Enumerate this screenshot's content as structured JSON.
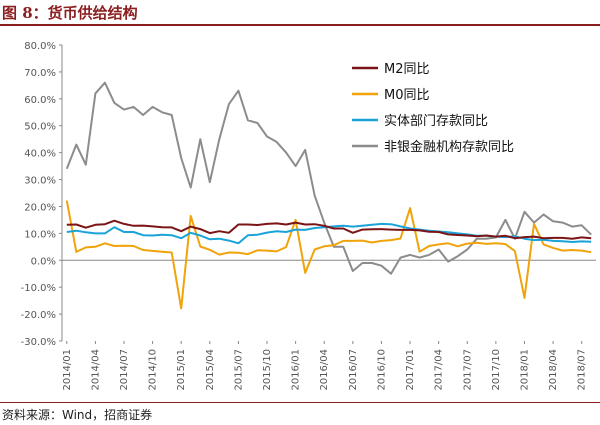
{
  "header": {
    "title": "图 8：货币供给结构"
  },
  "footer": {
    "source": "资料来源：Wind，招商证券"
  },
  "chart_data": {
    "type": "line",
    "ylim": [
      -30,
      80
    ],
    "yticks": [
      "-30.0%",
      "-20.0%",
      "-10.0%",
      "0.0%",
      "10.0%",
      "20.0%",
      "30.0%",
      "40.0%",
      "50.0%",
      "60.0%",
      "70.0%",
      "80.0%"
    ],
    "x": [
      "2014/01",
      "2014/02",
      "2014/03",
      "2014/04",
      "2014/05",
      "2014/06",
      "2014/07",
      "2014/08",
      "2014/09",
      "2014/10",
      "2014/11",
      "2014/12",
      "2015/01",
      "2015/02",
      "2015/03",
      "2015/04",
      "2015/05",
      "2015/06",
      "2015/07",
      "2015/08",
      "2015/09",
      "2015/10",
      "2015/11",
      "2015/12",
      "2016/01",
      "2016/02",
      "2016/03",
      "2016/04",
      "2016/05",
      "2016/06",
      "2016/07",
      "2016/08",
      "2016/09",
      "2016/10",
      "2016/11",
      "2016/12",
      "2017/01",
      "2017/02",
      "2017/03",
      "2017/04",
      "2017/05",
      "2017/06",
      "2017/07",
      "2017/08",
      "2017/09",
      "2017/10",
      "2017/11",
      "2017/12",
      "2018/01",
      "2018/02",
      "2018/03",
      "2018/04",
      "2018/05",
      "2018/06",
      "2018/07",
      "2018/08"
    ],
    "xticks": [
      "2014/01",
      "2014/04",
      "2014/07",
      "2014/10",
      "2015/01",
      "2015/04",
      "2015/07",
      "2015/10",
      "2016/01",
      "2016/04",
      "2016/07",
      "2016/10",
      "2017/01",
      "2017/04",
      "2017/07",
      "2017/10",
      "2018/01",
      "2018/04",
      "2018/07"
    ],
    "series": [
      {
        "name": "M2同比",
        "color": "#7b1416",
        "values": [
          13.2,
          13.3,
          12.1,
          13.2,
          13.4,
          14.7,
          13.5,
          12.8,
          12.9,
          12.6,
          12.3,
          12.2,
          10.8,
          12.5,
          11.6,
          10.1,
          10.8,
          10.2,
          13.3,
          13.3,
          13.1,
          13.5,
          13.7,
          13.3,
          14.0,
          13.3,
          13.4,
          12.8,
          11.8,
          11.8,
          10.2,
          11.4,
          11.5,
          11.6,
          11.4,
          11.3,
          11.3,
          11.1,
          10.6,
          10.5,
          9.6,
          9.4,
          9.2,
          8.9,
          9.2,
          8.8,
          9.1,
          8.2,
          8.6,
          8.8,
          8.2,
          8.3,
          8.3,
          8.0,
          8.5,
          8.2
        ]
      },
      {
        "name": "M0同比",
        "color": "#f0a30a",
        "values": [
          22.2,
          3.1,
          4.8,
          5.0,
          6.3,
          5.3,
          5.4,
          5.3,
          3.8,
          3.5,
          3.2,
          2.9,
          -17.9,
          16.5,
          5.1,
          3.9,
          2.1,
          2.9,
          2.8,
          2.3,
          3.7,
          3.6,
          3.3,
          4.9,
          15.0,
          -4.7,
          4.0,
          5.2,
          5.6,
          7.2,
          7.2,
          7.3,
          6.6,
          7.2,
          7.5,
          8.1,
          19.4,
          3.2,
          5.3,
          5.9,
          6.3,
          5.2,
          6.2,
          6.5,
          6.1,
          6.3,
          6.0,
          3.4,
          -14.0,
          13.5,
          5.9,
          4.6,
          3.6,
          3.8,
          3.6,
          3.0
        ]
      },
      {
        "name": "实体部门存款同比",
        "color": "#1aa3d9",
        "values": [
          10.5,
          11.0,
          10.4,
          10.0,
          10.0,
          12.3,
          10.5,
          10.5,
          9.3,
          9.2,
          9.5,
          9.3,
          8.2,
          10.2,
          9.2,
          7.8,
          8.0,
          7.3,
          6.3,
          9.3,
          9.5,
          10.3,
          10.8,
          10.5,
          11.4,
          11.3,
          12.0,
          12.3,
          12.6,
          12.8,
          12.5,
          12.8,
          13.2,
          13.5,
          13.4,
          12.6,
          11.8,
          11.4,
          11.0,
          10.7,
          10.4,
          10.0,
          9.6,
          9.1,
          9.1,
          8.8,
          8.6,
          8.9,
          8.0,
          7.5,
          7.6,
          7.2,
          7.1,
          6.8,
          7.0,
          6.9
        ]
      },
      {
        "name": "非银金融机构存款同比",
        "color": "#8c8c8c",
        "values": [
          34.0,
          43.0,
          35.5,
          62.0,
          66.0,
          58.5,
          56.0,
          57.0,
          54.0,
          57.0,
          55.0,
          54.0,
          38.0,
          27.0,
          45.0,
          29.0,
          45.0,
          58.0,
          63.0,
          52.0,
          51.0,
          46.0,
          44.0,
          40.0,
          35.0,
          41.0,
          24.0,
          14.0,
          5.0,
          5.0,
          -4.0,
          -1.0,
          -1.0,
          -2.0,
          -5.0,
          1.0,
          2.0,
          1.0,
          2.0,
          4.0,
          -0.5,
          1.5,
          4.0,
          8.0,
          8.0,
          8.5,
          15.0,
          8.0,
          18.0,
          14.0,
          17.0,
          14.5,
          14.0,
          12.5,
          13.0,
          9.5
        ]
      }
    ]
  }
}
